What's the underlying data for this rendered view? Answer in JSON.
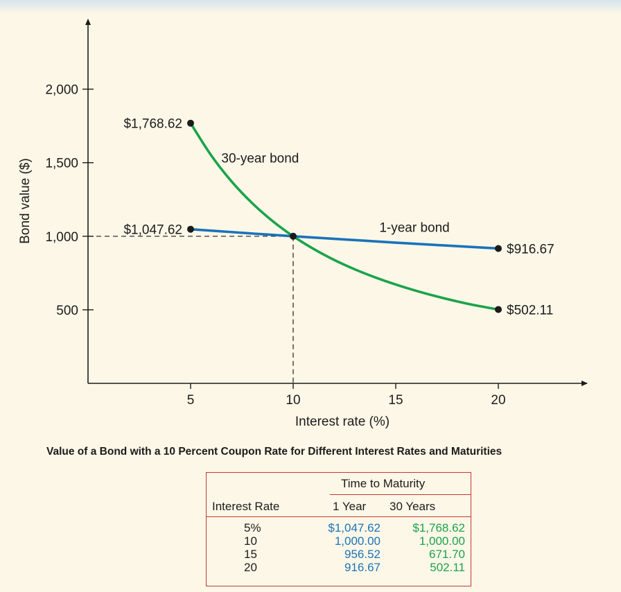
{
  "chart_data": {
    "type": "line",
    "xlabel": "Interest rate (%)",
    "ylabel": "Bond value ($)",
    "xlim": [
      0,
      24
    ],
    "ylim": [
      0,
      2400
    ],
    "xticks": [
      5,
      10,
      15,
      20
    ],
    "xtick_labels": [
      "5",
      "10",
      "15",
      "20"
    ],
    "yticks": [
      500,
      1000,
      1500,
      2000
    ],
    "ytick_labels": [
      "500",
      "1,000",
      "1,500",
      "2,000"
    ],
    "grid": false,
    "reference_point": {
      "x": 10,
      "y": 1000
    },
    "series": [
      {
        "name": "30-year bond",
        "color": "#1aa34a",
        "x": [
          5,
          6,
          7,
          8,
          9,
          10,
          11,
          12,
          13,
          14,
          15,
          16,
          17,
          18,
          19,
          20
        ],
        "y": [
          1768.62,
          1550.5,
          1372.3,
          1225.2,
          1102.7,
          1000.0,
          913.2,
          839.0,
          775.3,
          720.3,
          671.7,
          628.8,
          590.6,
          556.8,
          527.0,
          502.11
        ]
      },
      {
        "name": "1-year bond",
        "color": "#1a73b8",
        "x": [
          5,
          10,
          15,
          20
        ],
        "y": [
          1047.62,
          1000.0,
          956.52,
          916.67
        ]
      }
    ],
    "endpoint_labels": [
      {
        "series": 0,
        "x": 5,
        "y": 1768.62,
        "text": "$1,768.62",
        "side": "left"
      },
      {
        "series": 1,
        "x": 5,
        "y": 1047.62,
        "text": "$1,047.62",
        "side": "left"
      },
      {
        "series": 1,
        "x": 20,
        "y": 916.67,
        "text": "$916.67",
        "side": "right"
      },
      {
        "series": 0,
        "x": 20,
        "y": 502.11,
        "text": "$502.11",
        "side": "right"
      }
    ],
    "series_labels": [
      {
        "series": 0,
        "text": "30-year bond",
        "x": 6.5,
        "y": 1500
      },
      {
        "series": 1,
        "text": "1-year bond",
        "x": 14.2,
        "y": 1030
      }
    ]
  },
  "caption": "Value of a Bond with a 10 Percent Coupon Rate for Different Interest Rates and Maturities",
  "table": {
    "group_header": "Time to Maturity",
    "col_headers": [
      "Interest Rate",
      "1 Year",
      "30 Years"
    ],
    "rows": [
      [
        "5%",
        "$1,047.62",
        "$1,768.62"
      ],
      [
        "10",
        "1,000.00",
        "1,000.00"
      ],
      [
        "15",
        "956.52",
        "671.70"
      ],
      [
        "20",
        "916.67",
        "502.11"
      ]
    ]
  }
}
